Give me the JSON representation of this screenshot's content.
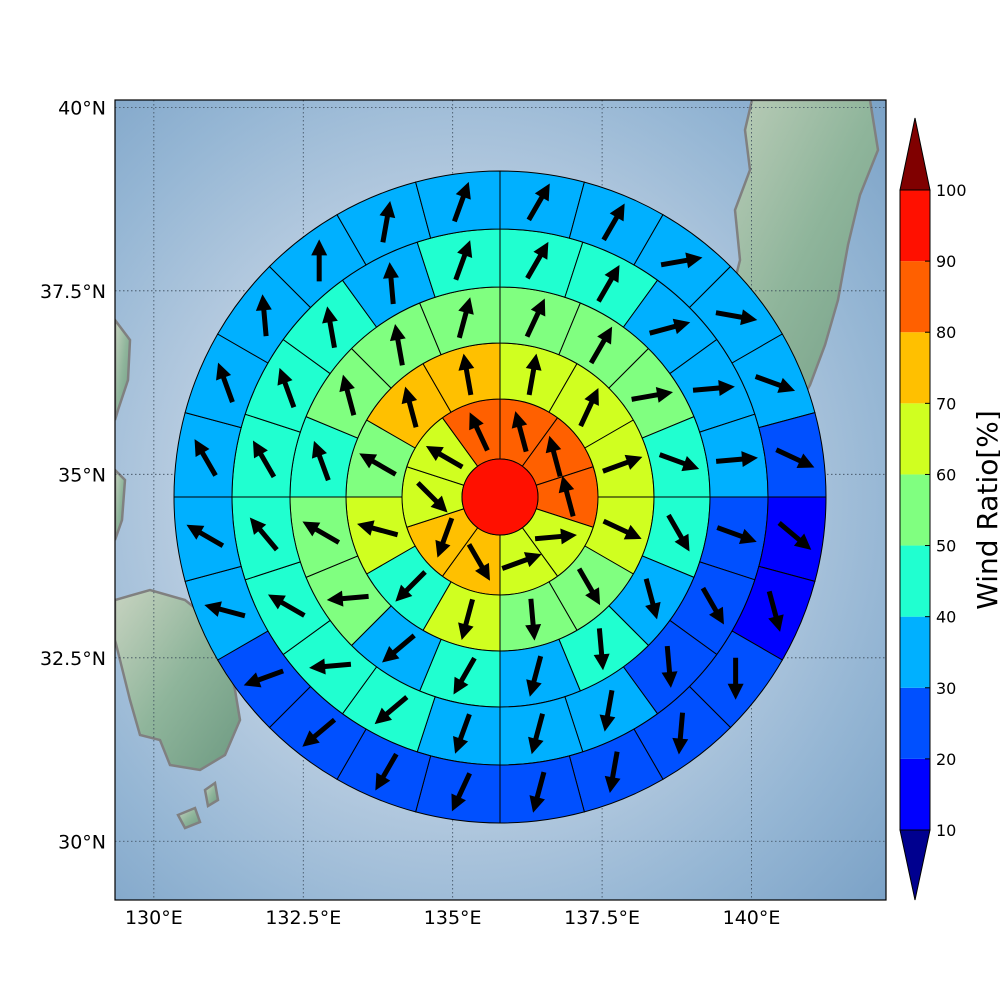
{
  "map": {
    "lon_ticks": [
      "130°E",
      "132.5°E",
      "135°E",
      "137.5°E",
      "140°E"
    ],
    "lat_ticks": [
      "30°N",
      "32.5°N",
      "35°N",
      "37.5°N",
      "40°N"
    ],
    "extent": {
      "lon": [
        129.35,
        142.25
      ],
      "lat": [
        29.2,
        40.1
      ]
    },
    "center": {
      "lon": 135.8,
      "lat": 34.65
    },
    "land_color": "#8fb59b",
    "coast_color": "#808080"
  },
  "colorbar": {
    "title": "Wind Ratio[%]",
    "ticks": [
      "10",
      "20",
      "30",
      "40",
      "50",
      "60",
      "70",
      "80",
      "90",
      "100"
    ],
    "bins": [
      {
        "range": [
          10,
          20
        ],
        "color": "#0000ff"
      },
      {
        "range": [
          20,
          30
        ],
        "color": "#0050ff"
      },
      {
        "range": [
          30,
          40
        ],
        "color": "#00b0ff"
      },
      {
        "range": [
          40,
          50
        ],
        "color": "#20ffd0"
      },
      {
        "range": [
          50,
          60
        ],
        "color": "#80ff80"
      },
      {
        "range": [
          60,
          70
        ],
        "color": "#d0ff20"
      },
      {
        "range": [
          70,
          80
        ],
        "color": "#ffc000"
      },
      {
        "range": [
          80,
          90
        ],
        "color": "#ff6000"
      },
      {
        "range": [
          90,
          100
        ],
        "color": "#ff1000"
      }
    ],
    "under_color": "#00008f",
    "over_color": "#800000"
  },
  "chart_data": {
    "type": "heatmap",
    "description_units": "wind ratio percent per polar sector; arrow direction in degrees clockwise from north",
    "center_value": 95,
    "rings": [
      {
        "ring": 1,
        "values": [
          85,
          85,
          85,
          65,
          65,
          75,
          75,
          65,
          65,
          85
        ],
        "arrow_dir": [
          345,
          345,
          345,
          85,
          70,
          150,
          200,
          135,
          300,
          335
        ]
      },
      {
        "ring": 2,
        "values": [
          65,
          65,
          65,
          65,
          55,
          55,
          65,
          45,
          65,
          55,
          75,
          75
        ],
        "arrow_dir": [
          10,
          25,
          70,
          115,
          150,
          175,
          195,
          225,
          285,
          300,
          345,
          350
        ]
      },
      {
        "ring": 3,
        "values": [
          55,
          55,
          55,
          45,
          45,
          35,
          45,
          35,
          45,
          35,
          55,
          55,
          45,
          55,
          55,
          55
        ],
        "arrow_dir": [
          25,
          30,
          80,
          110,
          150,
          165,
          175,
          195,
          210,
          230,
          265,
          300,
          340,
          345,
          350,
          15
        ]
      },
      {
        "ring": 4,
        "values": [
          45,
          45,
          35,
          35,
          35,
          25,
          25,
          25,
          35,
          35,
          35,
          45,
          45,
          45,
          45,
          45,
          45,
          45,
          35,
          45
        ],
        "arrow_dir": [
          30,
          30,
          75,
          85,
          85,
          110,
          150,
          175,
          190,
          195,
          200,
          230,
          265,
          300,
          320,
          330,
          340,
          350,
          355,
          20
        ]
      },
      {
        "ring": 5,
        "values": [
          35,
          35,
          35,
          35,
          35,
          25,
          15,
          15,
          25,
          25,
          25,
          25,
          25,
          25,
          25,
          25,
          35,
          35,
          35,
          35,
          35,
          35,
          35,
          35
        ],
        "arrow_dir": [
          30,
          30,
          80,
          100,
          110,
          115,
          130,
          165,
          180,
          185,
          190,
          195,
          205,
          210,
          230,
          250,
          285,
          300,
          330,
          340,
          355,
          0,
          10,
          20
        ]
      }
    ]
  }
}
